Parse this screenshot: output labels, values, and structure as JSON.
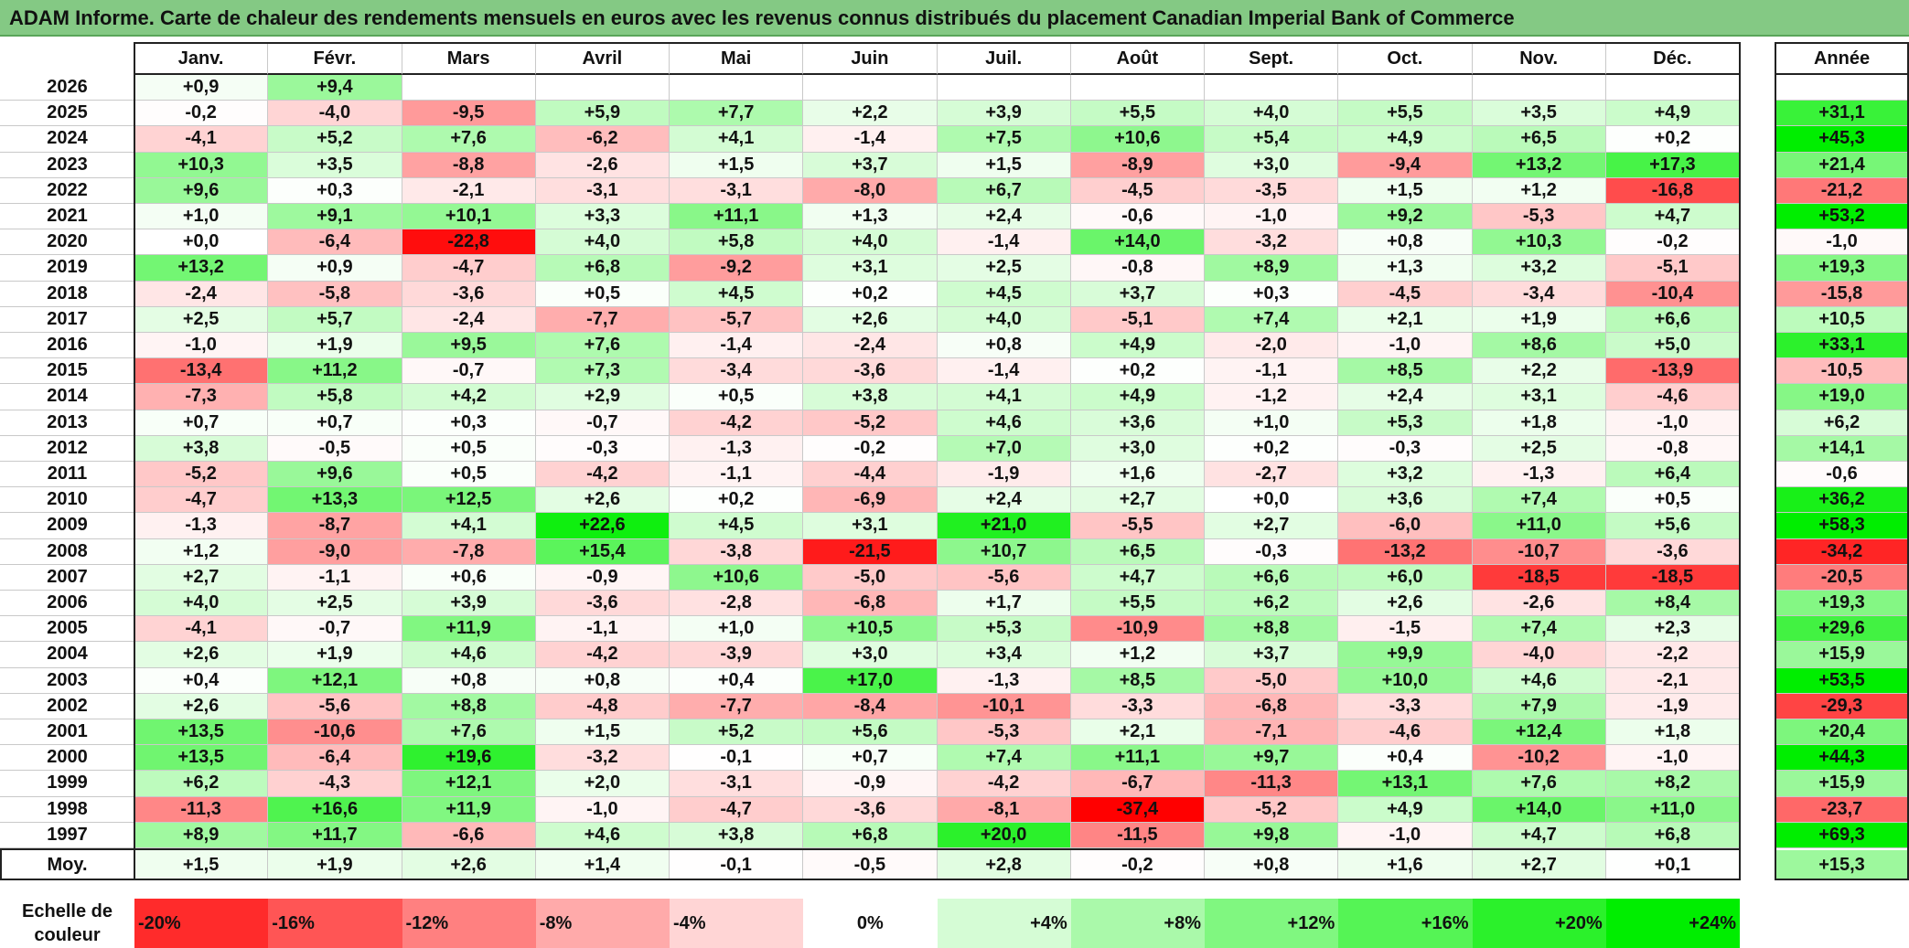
{
  "title": "ADAM Informe. Carte de chaleur des rendements mensuels en euros avec les revenus connus distribués du placement Canadian Imperial Bank of Commerce",
  "colors": {
    "title_bg": "#84c984",
    "neg_max": "#ff0000",
    "pos_max": "#00ee00",
    "zero": "#ffffff"
  },
  "chart_data": {
    "type": "heatmap",
    "title": "ADAM Informe. Carte de chaleur des rendements mensuels en euros avec les revenus connus distribués du placement Canadian Imperial Bank of Commerce",
    "months": [
      "Janv.",
      "Févr.",
      "Mars",
      "Avril",
      "Mai",
      "Juin",
      "Juil.",
      "Août",
      "Sept.",
      "Oct.",
      "Nov.",
      "Déc."
    ],
    "year_header": "Année",
    "rows": [
      {
        "year": "2026",
        "values": [
          "+0,9",
          "+9,4",
          "",
          "",
          "",
          "",
          "",
          "",
          "",
          "",
          "",
          ""
        ],
        "annual": ""
      },
      {
        "year": "2025",
        "values": [
          "-0,2",
          "-4,0",
          "-9,5",
          "+5,9",
          "+7,7",
          "+2,2",
          "+3,9",
          "+5,5",
          "+4,0",
          "+5,5",
          "+3,5",
          "+4,9"
        ],
        "annual": "+31,1"
      },
      {
        "year": "2024",
        "values": [
          "-4,1",
          "+5,2",
          "+7,6",
          "-6,2",
          "+4,1",
          "-1,4",
          "+7,5",
          "+10,6",
          "+5,4",
          "+4,9",
          "+6,5",
          "+0,2"
        ],
        "annual": "+45,3"
      },
      {
        "year": "2023",
        "values": [
          "+10,3",
          "+3,5",
          "-8,8",
          "-2,6",
          "+1,5",
          "+3,7",
          "+1,5",
          "-8,9",
          "+3,0",
          "-9,4",
          "+13,2",
          "+17,3"
        ],
        "annual": "+21,4"
      },
      {
        "year": "2022",
        "values": [
          "+9,6",
          "+0,3",
          "-2,1",
          "-3,1",
          "-3,1",
          "-8,0",
          "+6,7",
          "-4,5",
          "-3,5",
          "+1,5",
          "+1,2",
          "-16,8"
        ],
        "annual": "-21,2"
      },
      {
        "year": "2021",
        "values": [
          "+1,0",
          "+9,1",
          "+10,1",
          "+3,3",
          "+11,1",
          "+1,3",
          "+2,4",
          "-0,6",
          "-1,0",
          "+9,2",
          "-5,3",
          "+4,7"
        ],
        "annual": "+53,2"
      },
      {
        "year": "2020",
        "values": [
          "+0,0",
          "-6,4",
          "-22,8",
          "+4,0",
          "+5,8",
          "+4,0",
          "-1,4",
          "+14,0",
          "-3,2",
          "+0,8",
          "+10,3",
          "-0,2"
        ],
        "annual": "-1,0"
      },
      {
        "year": "2019",
        "values": [
          "+13,2",
          "+0,9",
          "-4,7",
          "+6,8",
          "-9,2",
          "+3,1",
          "+2,5",
          "-0,8",
          "+8,9",
          "+1,3",
          "+3,2",
          "-5,1"
        ],
        "annual": "+19,3"
      },
      {
        "year": "2018",
        "values": [
          "-2,4",
          "-5,8",
          "-3,6",
          "+0,5",
          "+4,5",
          "+0,2",
          "+4,5",
          "+3,7",
          "+0,3",
          "-4,5",
          "-3,4",
          "-10,4"
        ],
        "annual": "-15,8"
      },
      {
        "year": "2017",
        "values": [
          "+2,5",
          "+5,7",
          "-2,4",
          "-7,7",
          "-5,7",
          "+2,6",
          "+4,0",
          "-5,1",
          "+7,4",
          "+2,1",
          "+1,9",
          "+6,6"
        ],
        "annual": "+10,5"
      },
      {
        "year": "2016",
        "values": [
          "-1,0",
          "+1,9",
          "+9,5",
          "+7,6",
          "-1,4",
          "-2,4",
          "+0,8",
          "+4,9",
          "-2,0",
          "-1,0",
          "+8,6",
          "+5,0"
        ],
        "annual": "+33,1"
      },
      {
        "year": "2015",
        "values": [
          "-13,4",
          "+11,2",
          "-0,7",
          "+7,3",
          "-3,4",
          "-3,6",
          "-1,4",
          "+0,2",
          "-1,1",
          "+8,5",
          "+2,2",
          "-13,9"
        ],
        "annual": "-10,5"
      },
      {
        "year": "2014",
        "values": [
          "-7,3",
          "+5,8",
          "+4,2",
          "+2,9",
          "+0,5",
          "+3,8",
          "+4,1",
          "+4,9",
          "-1,2",
          "+2,4",
          "+3,1",
          "-4,6"
        ],
        "annual": "+19,0"
      },
      {
        "year": "2013",
        "values": [
          "+0,7",
          "+0,7",
          "+0,3",
          "-0,7",
          "-4,2",
          "-5,2",
          "+4,6",
          "+3,6",
          "+1,0",
          "+5,3",
          "+1,8",
          "-1,0"
        ],
        "annual": "+6,2"
      },
      {
        "year": "2012",
        "values": [
          "+3,8",
          "-0,5",
          "+0,5",
          "-0,3",
          "-1,3",
          "-0,2",
          "+7,0",
          "+3,0",
          "+0,2",
          "-0,3",
          "+2,5",
          "-0,8"
        ],
        "annual": "+14,1"
      },
      {
        "year": "2011",
        "values": [
          "-5,2",
          "+9,6",
          "+0,5",
          "-4,2",
          "-1,1",
          "-4,4",
          "-1,9",
          "+1,6",
          "-2,7",
          "+3,2",
          "-1,3",
          "+6,4"
        ],
        "annual": "-0,6"
      },
      {
        "year": "2010",
        "values": [
          "-4,7",
          "+13,3",
          "+12,5",
          "+2,6",
          "+0,2",
          "-6,9",
          "+2,4",
          "+2,7",
          "+0,0",
          "+3,6",
          "+7,4",
          "+0,5"
        ],
        "annual": "+36,2"
      },
      {
        "year": "2009",
        "values": [
          "-1,3",
          "-8,7",
          "+4,1",
          "+22,6",
          "+4,5",
          "+3,1",
          "+21,0",
          "-5,5",
          "+2,7",
          "-6,0",
          "+11,0",
          "+5,6"
        ],
        "annual": "+58,3"
      },
      {
        "year": "2008",
        "values": [
          "+1,2",
          "-9,0",
          "-7,8",
          "+15,4",
          "-3,8",
          "-21,5",
          "+10,7",
          "+6,5",
          "-0,3",
          "-13,2",
          "-10,7",
          "-3,6"
        ],
        "annual": "-34,2"
      },
      {
        "year": "2007",
        "values": [
          "+2,7",
          "-1,1",
          "+0,6",
          "-0,9",
          "+10,6",
          "-5,0",
          "-5,6",
          "+4,7",
          "+6,6",
          "+6,0",
          "-18,5",
          "-18,5"
        ],
        "annual": "-20,5"
      },
      {
        "year": "2006",
        "values": [
          "+4,0",
          "+2,5",
          "+3,9",
          "-3,6",
          "-2,8",
          "-6,8",
          "+1,7",
          "+5,5",
          "+6,2",
          "+2,6",
          "-2,6",
          "+8,4"
        ],
        "annual": "+19,3"
      },
      {
        "year": "2005",
        "values": [
          "-4,1",
          "-0,7",
          "+11,9",
          "-1,1",
          "+1,0",
          "+10,5",
          "+5,3",
          "-10,9",
          "+8,8",
          "-1,5",
          "+7,4",
          "+2,3"
        ],
        "annual": "+29,6"
      },
      {
        "year": "2004",
        "values": [
          "+2,6",
          "+1,9",
          "+4,6",
          "-4,2",
          "-3,9",
          "+3,0",
          "+3,4",
          "+1,2",
          "+3,7",
          "+9,9",
          "-4,0",
          "-2,2"
        ],
        "annual": "+15,9"
      },
      {
        "year": "2003",
        "values": [
          "+0,4",
          "+12,1",
          "+0,8",
          "+0,8",
          "+0,4",
          "+17,0",
          "-1,3",
          "+8,5",
          "-5,0",
          "+10,0",
          "+4,6",
          "-2,1"
        ],
        "annual": "+53,5"
      },
      {
        "year": "2002",
        "values": [
          "+2,6",
          "-5,6",
          "+8,8",
          "-4,8",
          "-7,7",
          "-8,4",
          "-10,1",
          "-3,3",
          "-6,8",
          "-3,3",
          "+7,9",
          "-1,9"
        ],
        "annual": "-29,3"
      },
      {
        "year": "2001",
        "values": [
          "+13,5",
          "-10,6",
          "+7,6",
          "+1,5",
          "+5,2",
          "+5,6",
          "-5,3",
          "+2,1",
          "-7,1",
          "-4,6",
          "+12,4",
          "+1,8"
        ],
        "annual": "+20,4"
      },
      {
        "year": "2000",
        "values": [
          "+13,5",
          "-6,4",
          "+19,6",
          "-3,2",
          "-0,1",
          "+0,7",
          "+7,4",
          "+11,1",
          "+9,7",
          "+0,4",
          "-10,2",
          "-1,0"
        ],
        "annual": "+44,3"
      },
      {
        "year": "1999",
        "values": [
          "+6,2",
          "-4,3",
          "+12,1",
          "+2,0",
          "-3,1",
          "-0,9",
          "-4,2",
          "-6,7",
          "-11,3",
          "+13,1",
          "+7,6",
          "+8,2"
        ],
        "annual": "+15,9"
      },
      {
        "year": "1998",
        "values": [
          "-11,3",
          "+16,6",
          "+11,9",
          "-1,0",
          "-4,7",
          "-3,6",
          "-8,1",
          "-37,4",
          "-5,2",
          "+4,9",
          "+14,0",
          "+11,0"
        ],
        "annual": "-23,7"
      },
      {
        "year": "1997",
        "values": [
          "+8,9",
          "+11,7",
          "-6,6",
          "+4,6",
          "+3,8",
          "+6,8",
          "+20,0",
          "-11,5",
          "+9,8",
          "-1,0",
          "+4,7",
          "+6,8"
        ],
        "annual": "+69,3"
      }
    ],
    "average": {
      "label": "Moy.",
      "values": [
        "+1,5",
        "+1,9",
        "+2,6",
        "+1,4",
        "-0,1",
        "-0,5",
        "+2,8",
        "-0,2",
        "+0,8",
        "+1,6",
        "+2,7",
        "+0,1"
      ],
      "annual": "+15,3"
    },
    "scale": {
      "label_line1": "Echelle de",
      "label_line2": "couleur",
      "ticks": [
        "-20%",
        "-16%",
        "-12%",
        "-8%",
        "-4%",
        "0%",
        "+4%",
        "+8%",
        "+12%",
        "+16%",
        "+20%",
        "+24%"
      ]
    }
  }
}
